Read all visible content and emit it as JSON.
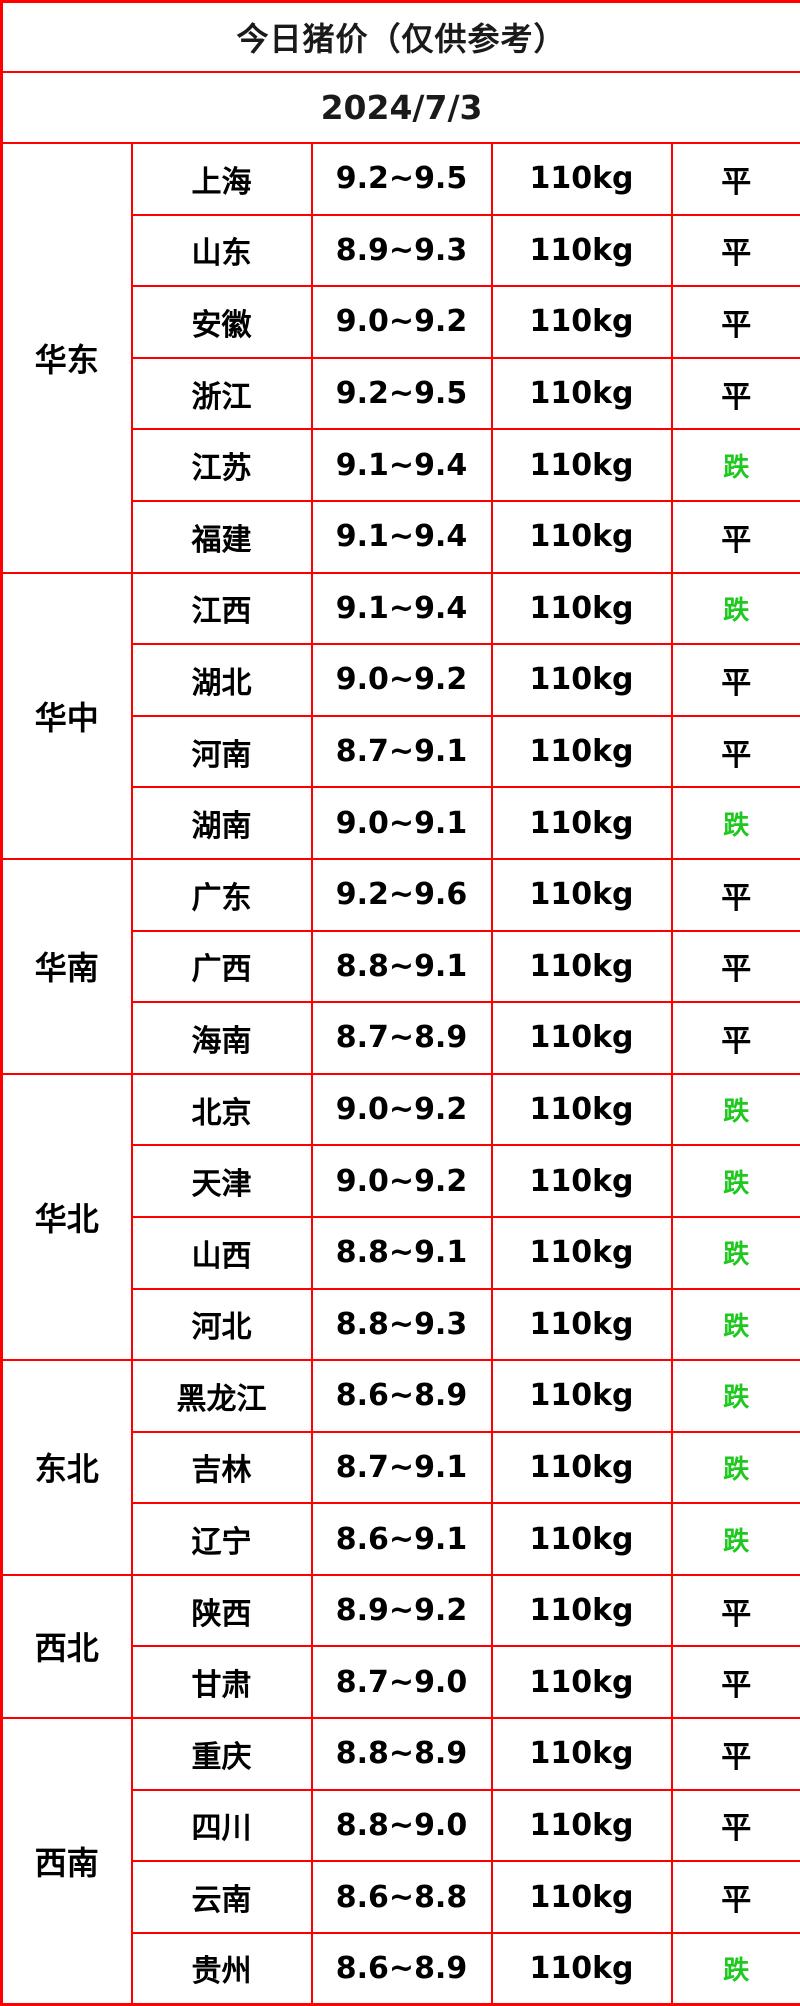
{
  "chart_data": {
    "type": "table",
    "title": "今日猪价（仅供参考）",
    "date": "2024/7/3",
    "status_values": {
      "flat": "平",
      "down": "跌"
    },
    "layout": {
      "columns": 5,
      "header_rows": 2,
      "data_rows": 26,
      "legend_position": "none",
      "grid": "on"
    },
    "regions": [
      {
        "name": "华东",
        "provinces": [
          {
            "province": "上海",
            "price": "9.2~9.5",
            "weight": "110kg",
            "status": "平"
          },
          {
            "province": "山东",
            "price": "8.9~9.3",
            "weight": "110kg",
            "status": "平"
          },
          {
            "province": "安徽",
            "price": "9.0~9.2",
            "weight": "110kg",
            "status": "平"
          },
          {
            "province": "浙江",
            "price": "9.2~9.5",
            "weight": "110kg",
            "status": "平"
          },
          {
            "province": "江苏",
            "price": "9.1~9.4",
            "weight": "110kg",
            "status": "跌"
          },
          {
            "province": "福建",
            "price": "9.1~9.4",
            "weight": "110kg",
            "status": "平"
          }
        ]
      },
      {
        "name": "华中",
        "provinces": [
          {
            "province": "江西",
            "price": "9.1~9.4",
            "weight": "110kg",
            "status": "跌"
          },
          {
            "province": "湖北",
            "price": "9.0~9.2",
            "weight": "110kg",
            "status": "平"
          },
          {
            "province": "河南",
            "price": "8.7~9.1",
            "weight": "110kg",
            "status": "平"
          },
          {
            "province": "湖南",
            "price": "9.0~9.1",
            "weight": "110kg",
            "status": "跌"
          }
        ]
      },
      {
        "name": "华南",
        "provinces": [
          {
            "province": "广东",
            "price": "9.2~9.6",
            "weight": "110kg",
            "status": "平"
          },
          {
            "province": "广西",
            "price": "8.8~9.1",
            "weight": "110kg",
            "status": "平"
          },
          {
            "province": "海南",
            "price": "8.7~8.9",
            "weight": "110kg",
            "status": "平"
          }
        ]
      },
      {
        "name": "华北",
        "provinces": [
          {
            "province": "北京",
            "price": "9.0~9.2",
            "weight": "110kg",
            "status": "跌"
          },
          {
            "province": "天津",
            "price": "9.0~9.2",
            "weight": "110kg",
            "status": "跌"
          },
          {
            "province": "山西",
            "price": "8.8~9.1",
            "weight": "110kg",
            "status": "跌"
          },
          {
            "province": "河北",
            "price": "8.8~9.3",
            "weight": "110kg",
            "status": "跌"
          }
        ]
      },
      {
        "name": "东北",
        "provinces": [
          {
            "province": "黑龙江",
            "price": "8.6~8.9",
            "weight": "110kg",
            "status": "跌"
          },
          {
            "province": "吉林",
            "price": "8.7~9.1",
            "weight": "110kg",
            "status": "跌"
          },
          {
            "province": "辽宁",
            "price": "8.6~9.1",
            "weight": "110kg",
            "status": "跌"
          }
        ]
      },
      {
        "name": "西北",
        "provinces": [
          {
            "province": "陕西",
            "price": "8.9~9.2",
            "weight": "110kg",
            "status": "平"
          },
          {
            "province": "甘肃",
            "price": "8.7~9.0",
            "weight": "110kg",
            "status": "平"
          }
        ]
      },
      {
        "name": "西南",
        "provinces": [
          {
            "province": "重庆",
            "price": "8.8~8.9",
            "weight": "110kg",
            "status": "平"
          },
          {
            "province": "四川",
            "price": "8.8~9.0",
            "weight": "110kg",
            "status": "平"
          },
          {
            "province": "云南",
            "price": "8.6~8.8",
            "weight": "110kg",
            "status": "平"
          },
          {
            "province": "贵州",
            "price": "8.6~8.9",
            "weight": "110kg",
            "status": "跌"
          }
        ]
      }
    ]
  },
  "colors": {
    "header_bg": "#eb6318",
    "border": "#ff0000",
    "cell_bg": "#ffffff",
    "flat_text": "#000000",
    "down_text": "#1ec81e"
  }
}
